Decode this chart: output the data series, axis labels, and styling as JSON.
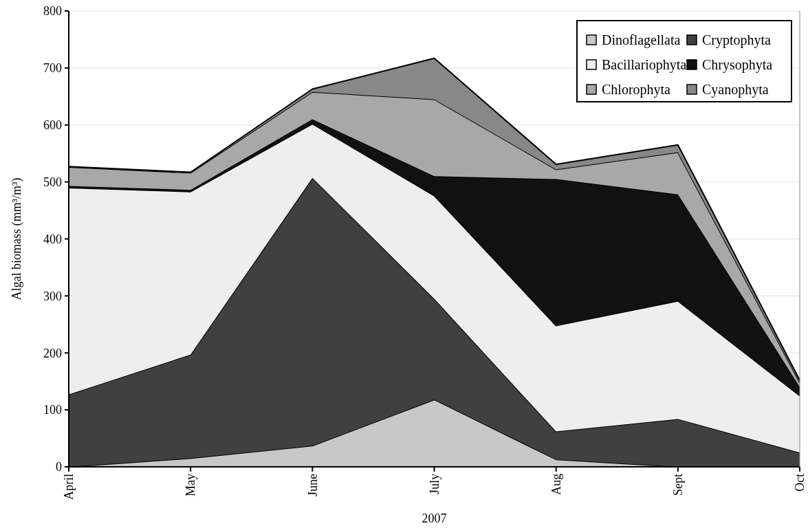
{
  "chart_data": {
    "type": "area",
    "stacked": true,
    "xlabel": "2007",
    "ylabel": "Algal biomass (mm³/m³)",
    "categories": [
      "April",
      "May",
      "June",
      "July",
      "Aug",
      "Sept",
      "Oct"
    ],
    "series": [
      {
        "name": "Dinoflagellata",
        "color": "#c8c8c8",
        "values": [
          0,
          15,
          37,
          118,
          13,
          0,
          0
        ]
      },
      {
        "name": "Cryptophyta",
        "color": "#404040",
        "values": [
          127,
          182,
          470,
          177,
          49,
          84,
          25
        ]
      },
      {
        "name": "Bacillariophyta",
        "color": "#eeeeee",
        "values": [
          363,
          286,
          95,
          181,
          186,
          207,
          100
        ]
      },
      {
        "name": "Chrysophyta",
        "color": "#111111",
        "values": [
          3,
          3,
          8,
          34,
          257,
          187,
          15
        ]
      },
      {
        "name": "Chlorophyta",
        "color": "#a8a8a8",
        "values": [
          33,
          30,
          48,
          135,
          17,
          74,
          8
        ]
      },
      {
        "name": "Cyanophyta",
        "color": "#888888",
        "values": [
          1,
          1,
          5,
          72,
          9,
          13,
          4
        ]
      }
    ],
    "ylim": [
      0,
      800
    ],
    "yticks": [
      0,
      100,
      200,
      300,
      400,
      500,
      600,
      700,
      800
    ],
    "grid": "y",
    "legend": "top right"
  }
}
